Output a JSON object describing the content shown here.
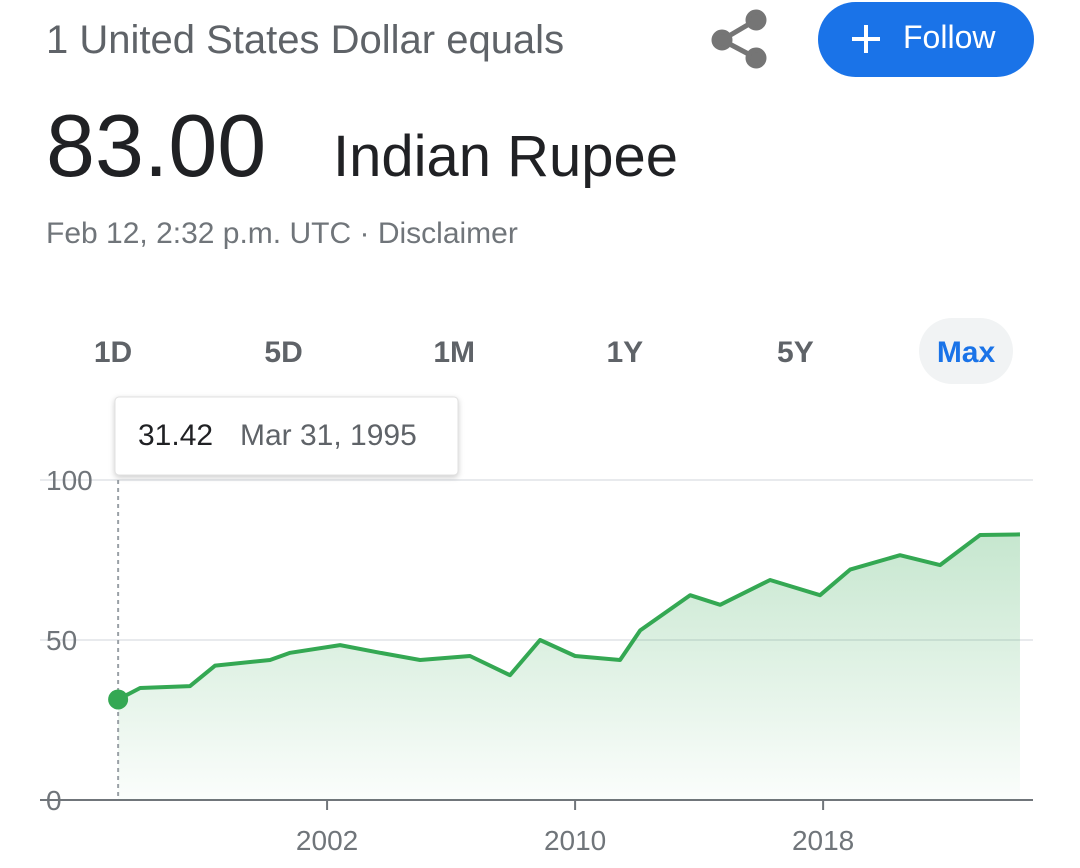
{
  "header": {
    "prefix": "1 United States Dollar equals",
    "amount": "83.00",
    "currency": "Indian Rupee",
    "timestamp": "Feb 12, 2:32 p.m. UTC",
    "separator": "·",
    "disclaimer": "Disclaimer",
    "follow": "Follow"
  },
  "ranges": [
    "1D",
    "5D",
    "1M",
    "1Y",
    "5Y",
    "Max"
  ],
  "active_range": 5,
  "chart_data": {
    "type": "area",
    "tooltip_date": "Mar 31, 1995",
    "x": [
      1995.26,
      1995.97,
      1997.58,
      1998.39,
      2000.16,
      2000.81,
      2002.42,
      2003.71,
      2005.0,
      2006.61,
      2007.9,
      2008.87,
      2010.0,
      2011.45,
      2012.1,
      2013.71,
      2014.68,
      2016.29,
      2017.9,
      2018.87,
      2020.48,
      2021.77,
      2023.06,
      2024.35
    ],
    "series": [
      {
        "color": "#34a853",
        "values": [
          31.42,
          35,
          35.6,
          42,
          43.75,
          46,
          48.4,
          46,
          43.75,
          45,
          39,
          50,
          45,
          43.75,
          53,
          64,
          61,
          68.75,
          64,
          72,
          76.5,
          73.4,
          82.8,
          83
        ]
      }
    ],
    "xlim": [
      1992.74,
      2024.77
    ],
    "xticks": [
      2002,
      2010,
      2018
    ],
    "ylim": [
      0,
      100
    ],
    "yticks": [
      0,
      50,
      100
    ],
    "grid": true
  }
}
